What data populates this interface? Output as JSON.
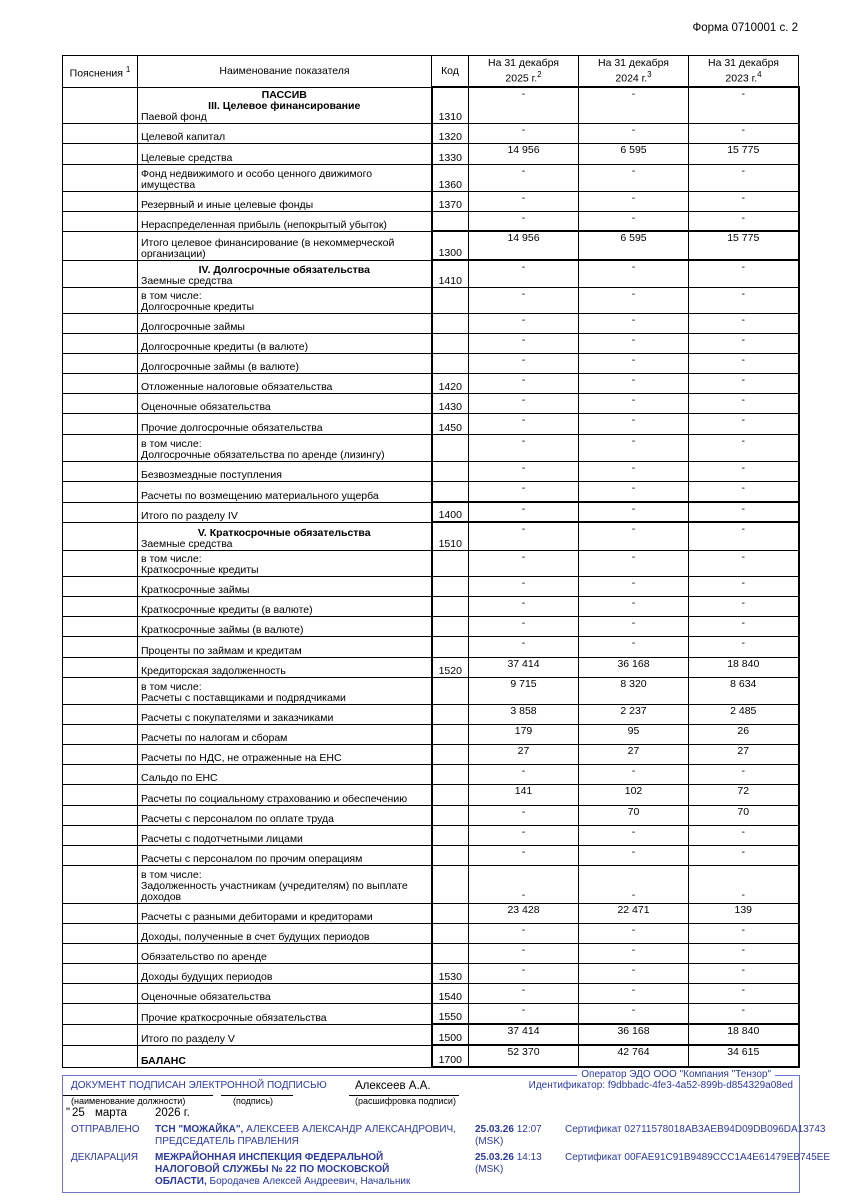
{
  "form_number": "Форма 0710001 с. 2",
  "columns": {
    "explanations": "Пояснения",
    "explanations_sup": "1",
    "indicator": "Наименование показателя",
    "code": "Код",
    "col1_line1": "На 31 декабря",
    "col1_line2": "2025 г.",
    "col1_sup": "2",
    "col2_line1": "На 31 декабря",
    "col2_line2": "2024 г.",
    "col2_sup": "3",
    "col3_line1": "На 31 декабря",
    "col3_line2": "2023 г.",
    "col3_sup": "4"
  },
  "rows": [
    {
      "headings": [
        "ПАССИВ",
        "III. Целевое финансирование"
      ],
      "name": "Паевой фонд",
      "code": "1310",
      "v": [
        "-",
        "-",
        "-"
      ],
      "h": 36,
      "thick": true
    },
    {
      "name": "Целевой капитал",
      "code": "1320",
      "v": [
        "-",
        "-",
        "-"
      ],
      "h": 20
    },
    {
      "name": "Целевые средства",
      "code": "1330",
      "v": [
        "14 956",
        "6 595",
        "15 775"
      ],
      "h": 21
    },
    {
      "name": "Фонд недвижимого и особо ценного движимого имущества",
      "code": "1360",
      "v": [
        "-",
        "-",
        "-"
      ],
      "h": 27
    },
    {
      "name": "Резервный и иные целевые фонды",
      "code": "1370",
      "v": [
        "-",
        "-",
        "-"
      ],
      "h": 20
    },
    {
      "name": "Нераспределенная прибыль (непокрытый убыток)",
      "code": "",
      "v": [
        "-",
        "-",
        "-"
      ],
      "h": 20
    },
    {
      "name": "Итого целевое финансирование (в некоммерческой организации)",
      "code": "1300",
      "v": [
        "14 956",
        "6 595",
        "15 775"
      ],
      "h": 29,
      "indent": true,
      "thick": true
    },
    {
      "headings": [
        "IV. Долгосрочные обязательства"
      ],
      "name": "Заемные средства",
      "code": "1410",
      "v": [
        "-",
        "-",
        "-"
      ],
      "h": 27,
      "thick": true
    },
    {
      "name": "в том числе:\nДолгосрочные кредиты",
      "code": "",
      "v": [
        "-",
        "-",
        "-"
      ],
      "h": 26
    },
    {
      "name": "Долгосрочные займы",
      "code": "",
      "v": [
        "-",
        "-",
        "-"
      ],
      "h": 20
    },
    {
      "name": "Долгосрочные кредиты (в валюте)",
      "code": "",
      "v": [
        "-",
        "-",
        "-"
      ],
      "h": 20
    },
    {
      "name": "Долгосрочные займы (в валюте)",
      "code": "",
      "v": [
        "-",
        "-",
        "-"
      ],
      "h": 20
    },
    {
      "name": "Отложенные налоговые обязательства",
      "code": "1420",
      "v": [
        "-",
        "-",
        "-"
      ],
      "h": 20
    },
    {
      "name": "Оценочные обязательства",
      "code": "1430",
      "v": [
        "-",
        "-",
        "-"
      ],
      "h": 20
    },
    {
      "name": "Прочие долгосрочные обязательства",
      "code": "1450",
      "v": [
        "-",
        "-",
        "-"
      ],
      "h": 21
    },
    {
      "name": "в том числе:\nДолгосрочные обязательства по аренде (лизингу)",
      "code": "",
      "v": [
        "-",
        "-",
        "-"
      ],
      "h": 27
    },
    {
      "name": "Безвозмездные поступления",
      "code": "",
      "v": [
        "-",
        "-",
        "-"
      ],
      "h": 20
    },
    {
      "name": "Расчеты по возмещению материального ущерба",
      "code": "",
      "v": [
        "-",
        "-",
        "-"
      ],
      "h": 21
    },
    {
      "name": "Итого по разделу IV",
      "code": "1400",
      "v": [
        "-",
        "-",
        "-"
      ],
      "h": 20,
      "indent": true,
      "thick": true
    },
    {
      "headings": [
        "V. Краткосрочные обязательства"
      ],
      "name": "Заемные средства",
      "code": "1510",
      "v": [
        "-",
        "-",
        "-"
      ],
      "h": 28,
      "thick": true
    },
    {
      "name": "в том числе:\nКраткосрочные кредиты",
      "code": "",
      "v": [
        "-",
        "-",
        "-"
      ],
      "h": 26
    },
    {
      "name": "Краткосрочные займы",
      "code": "",
      "v": [
        "-",
        "-",
        "-"
      ],
      "h": 20
    },
    {
      "name": "Краткосрочные кредиты (в валюте)",
      "code": "",
      "v": [
        "-",
        "-",
        "-"
      ],
      "h": 20
    },
    {
      "name": "Краткосрочные займы (в валюте)",
      "code": "",
      "v": [
        "-",
        "-",
        "-"
      ],
      "h": 20
    },
    {
      "name": "Проценты по займам и кредитам",
      "code": "",
      "v": [
        "-",
        "-",
        "-"
      ],
      "h": 21
    },
    {
      "name": "Кредиторская задолженность",
      "code": "1520",
      "v": [
        "37 414",
        "36 168",
        "18 840"
      ],
      "h": 20
    },
    {
      "name": "в том числе:\nРасчеты с поставщиками и подрядчиками",
      "code": "",
      "v": [
        "9 715",
        "8 320",
        "8 634"
      ],
      "h": 27
    },
    {
      "name": "Расчеты с покупателями и заказчиками",
      "code": "",
      "v": [
        "3 858",
        "2 237",
        "2 485"
      ],
      "h": 20
    },
    {
      "name": "Расчеты по налогам и сборам",
      "code": "",
      "v": [
        "179",
        "95",
        "26"
      ],
      "h": 20
    },
    {
      "name": "Расчеты по НДС, не отраженные на ЕНС",
      "code": "",
      "v": [
        "27",
        "27",
        "27"
      ],
      "h": 20
    },
    {
      "name": "Сальдо по ЕНС",
      "code": "",
      "v": [
        "-",
        "-",
        "-"
      ],
      "h": 20
    },
    {
      "name": "Расчеты по социальному страхованию и обеспечению",
      "code": "",
      "v": [
        "141",
        "102",
        "72"
      ],
      "h": 21
    },
    {
      "name": "Расчеты с персоналом по оплате труда",
      "code": "",
      "v": [
        "-",
        "70",
        "70"
      ],
      "h": 20
    },
    {
      "name": "Расчеты с подотчетными лицами",
      "code": "",
      "v": [
        "-",
        "-",
        "-"
      ],
      "h": 20
    },
    {
      "name": "Расчеты с персоналом по прочим операциям",
      "code": "",
      "v": [
        "-",
        "-",
        "-"
      ],
      "h": 20
    },
    {
      "name": "в том числе:\nЗадолженность участникам (учредителям) по выплате доходов",
      "code": "",
      "v": [
        "-",
        "-",
        "-"
      ],
      "h": 38,
      "vbottom": true
    },
    {
      "name": "Расчеты с разными дебиторами и кредиторами",
      "code": "",
      "v": [
        "23 428",
        "22 471",
        "139"
      ],
      "h": 20
    },
    {
      "name": "Доходы, полученные в счет будущих периодов",
      "code": "",
      "v": [
        "-",
        "-",
        "-"
      ],
      "h": 20
    },
    {
      "name": "Обязательство по аренде",
      "code": "",
      "v": [
        "-",
        "-",
        "-"
      ],
      "h": 20
    },
    {
      "name": "Доходы будущих периодов",
      "code": "1530",
      "v": [
        "-",
        "-",
        "-"
      ],
      "h": 20
    },
    {
      "name": "Оценочные обязательства",
      "code": "1540",
      "v": [
        "-",
        "-",
        "-"
      ],
      "h": 20
    },
    {
      "name": "Прочие краткосрочные обязательства",
      "code": "1550",
      "v": [
        "-",
        "-",
        "-"
      ],
      "h": 21
    },
    {
      "name": "Итого по разделу V",
      "code": "1500",
      "v": [
        "37 414",
        "36 168",
        "18 840"
      ],
      "h": 21,
      "indent": true,
      "bold": false,
      "thick": true
    },
    {
      "name": "БАЛАНС",
      "code": "1700",
      "v": [
        "52 370",
        "42 764",
        "34 615"
      ],
      "h": 22,
      "indent": true,
      "bold": true,
      "thick": true,
      "last": true
    }
  ],
  "signature": {
    "operator": "Оператор ЭДО ООО \"Компания \"Тензор\"",
    "signed_label": "ДОКУМЕНТ ПОДПИСАН ЭЛЕКТРОННОЙ ПОДПИСЬЮ",
    "signer_name": "Алексеев А.А.",
    "identifier": "Идентификатор: f9dbbadc-4fe3-4a52-899b-d854329a08ed",
    "caption_position": "(наименование должности)",
    "caption_signature": "(подпись)",
    "caption_decoding": "(расшифровка подписи)",
    "date_quote": "\"",
    "date_day": "25",
    "date_month": "марта",
    "date_year": "2026 г.",
    "sent_label": "ОТПРАВЛЕНО",
    "sent_org": "ТСН \"МОЖАЙКА\",",
    "sent_person": " АЛЕКСЕЕВ АЛЕКСАНДР АЛЕКСАНДРОВИЧ,",
    "sent_role": "ПРЕДСЕДАТЕЛЬ ПРАВЛЕНИЯ",
    "sent_date": "25.03.26",
    "sent_time": " 12:07",
    "sent_tz": "(MSK)",
    "sent_cert": "Сертификат 02711578018AB3AEB94D09DB096DA13743",
    "decl_label": "ДЕКЛАРАЦИЯ",
    "decl_org_line1": "МЕЖРАЙОННАЯ ИНСПЕКЦИЯ ФЕДЕРАЛЬНОЙ",
    "decl_org_line2": "НАЛОГОВОЙ СЛУЖБЫ № 22 ПО МОСКОВСКОЙ",
    "decl_org_line3": "ОБЛАСТИ,",
    "decl_person": " Бородачев Алексей Андреевич, Начальник",
    "decl_date": "25.03.26",
    "decl_time": " 14:13",
    "decl_tz": "(MSK)",
    "decl_cert": "Сертификат 00FAE91C91B9489CCC1A4E61479EB745EE"
  }
}
